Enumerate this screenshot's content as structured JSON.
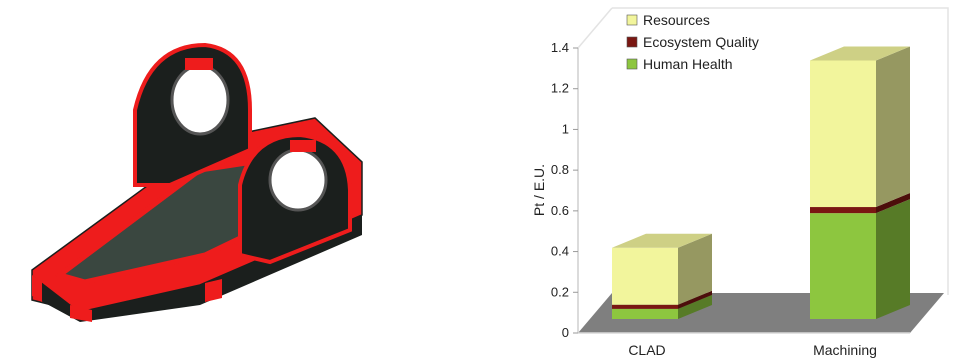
{
  "chart_data": {
    "type": "bar",
    "stacked": true,
    "style": "3d",
    "categories": [
      "CLAD",
      "Machining"
    ],
    "series": [
      {
        "name": "Human Health",
        "color": "#8dc63f",
        "values": [
          0.05,
          0.52
        ]
      },
      {
        "name": "Ecosystem Quality",
        "color": "#7a1712",
        "values": [
          0.02,
          0.03
        ]
      },
      {
        "name": "Resources",
        "color": "#f2f59c",
        "values": [
          0.28,
          0.72
        ]
      }
    ],
    "ylabel": "Pt / E.U.",
    "ylim": [
      0,
      1.4
    ],
    "yticks": [
      "0",
      "0.2",
      "0.4",
      "0.6",
      "0.8",
      "1",
      "1.2",
      "1.4"
    ],
    "legend_position": "top-left",
    "grid": false,
    "floor_color": "#7f7f7f"
  },
  "illustration": {
    "subject": "3D CAD model of a bracket part",
    "colors": {
      "body": "#1b1f1d",
      "edges": "#ee1c1c",
      "pocket": "#3a4740"
    }
  }
}
